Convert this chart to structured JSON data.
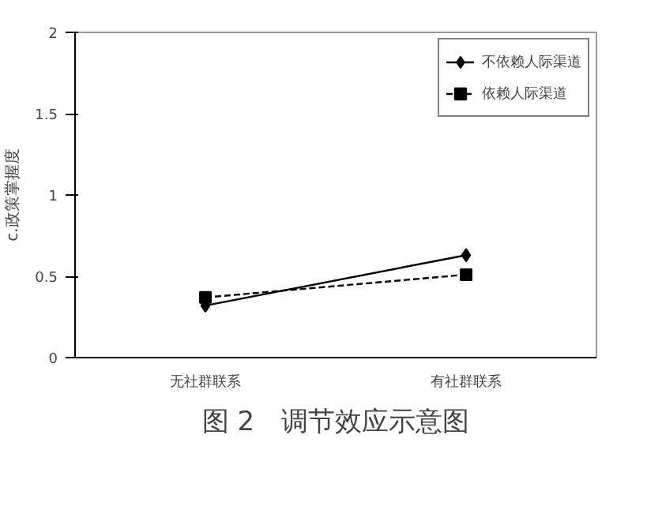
{
  "chart_data": {
    "type": "line",
    "title": "图 2　调节效应示意图",
    "ylabel": "c.政策掌握度",
    "categories": [
      "无社群联系",
      "有社群联系"
    ],
    "series": [
      {
        "name": "不依赖人际渠道",
        "color": "#000000",
        "values": [
          0.32,
          0.63
        ],
        "marker": "diamond",
        "line_style": "solid"
      },
      {
        "name": "依赖人际渠道",
        "color": "#000000",
        "values": [
          0.37,
          0.51
        ],
        "marker": "square",
        "line_style": "dashed"
      }
    ],
    "ylim": [
      0,
      2
    ],
    "yticks": [
      0,
      0.5,
      1,
      1.5,
      2
    ],
    "grid": false,
    "legend": "top right"
  }
}
